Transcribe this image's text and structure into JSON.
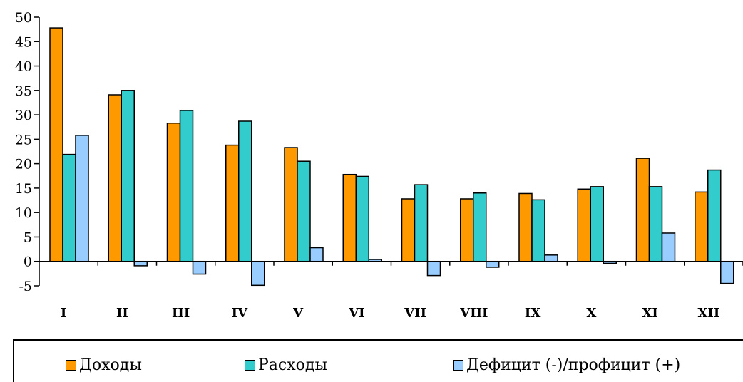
{
  "chart_data": {
    "type": "bar",
    "categories": [
      "I",
      "II",
      "III",
      "IV",
      "V",
      "VI",
      "VII",
      "VIII",
      "IX",
      "X",
      "XI",
      "XII"
    ],
    "series": [
      {
        "name": "Доходы",
        "color": "#FF9900",
        "values": [
          47.8,
          34.1,
          28.3,
          23.8,
          23.3,
          17.8,
          12.8,
          12.8,
          13.9,
          14.8,
          21.1,
          14.2
        ]
      },
      {
        "name": "Расходы",
        "color": "#33CCCC",
        "values": [
          21.9,
          35.0,
          30.9,
          28.7,
          20.5,
          17.4,
          15.7,
          14.0,
          12.6,
          15.3,
          15.3,
          18.7
        ]
      },
      {
        "name": "Дефицит (-)/профицит (+)",
        "color": "#99CCFF",
        "values": [
          25.8,
          -0.9,
          -2.6,
          -4.9,
          2.8,
          0.4,
          -2.9,
          -1.2,
          1.3,
          -0.4,
          5.8,
          -4.5
        ]
      }
    ],
    "ylim": [
      -5,
      50
    ],
    "yticks": [
      "50",
      "45",
      "40",
      "35",
      "30",
      "25",
      "20",
      "15",
      "10",
      "5",
      "0",
      "-5"
    ],
    "title": "",
    "xlabel": "",
    "ylabel": "",
    "grid": false,
    "legend_position": "bottom"
  }
}
